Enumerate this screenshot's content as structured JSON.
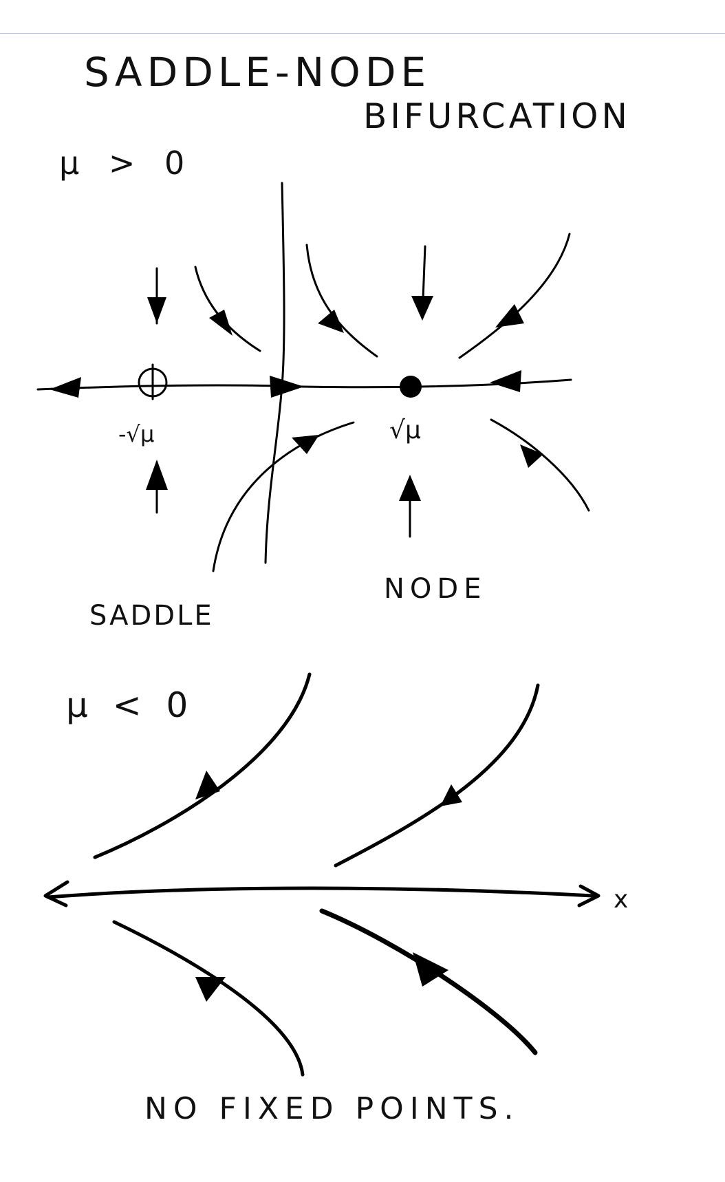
{
  "title": {
    "line1": "SADDLE-NODE",
    "line2": "BIFURCATION"
  },
  "case_positive": {
    "condition": "μ > 0",
    "fixed_point_left_label": "-√μ",
    "fixed_point_right_label": "√μ",
    "left_point_type": "SADDLE",
    "right_point_type": "NODE"
  },
  "case_negative": {
    "condition": "μ < 0",
    "axis_label": "x",
    "conclusion": "NO FIXED POINTS."
  },
  "colors": {
    "ink": "#000000",
    "rule": "#b9c4d6",
    "background": "#ffffff"
  }
}
